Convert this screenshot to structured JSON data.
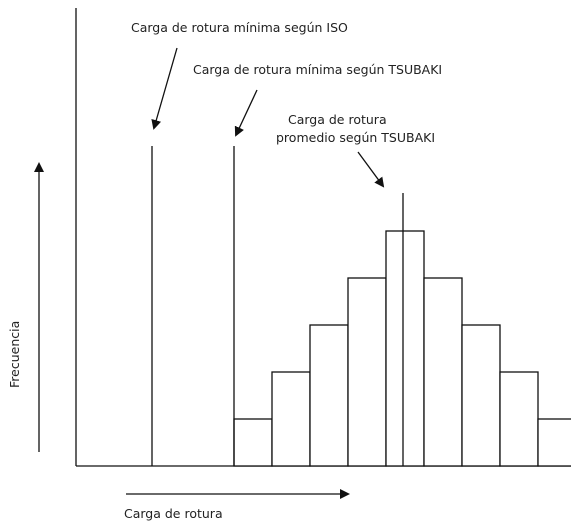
{
  "diagram": {
    "annotations": {
      "iso_min": "Carga de rotura mínima según ISO",
      "tsubaki_min": "Carga de rotura mínima según TSUBAKI",
      "tsubaki_avg_line1": "Carga de rotura",
      "tsubaki_avg_line2": "promedio según TSUBAKI"
    },
    "axes": {
      "y_label": "Frecuencia",
      "x_label": "Carga de rotura"
    },
    "bars": [
      1,
      2,
      3,
      4,
      5,
      4,
      3,
      2,
      1
    ],
    "colors": {
      "ink": "#111111",
      "background": "#ffffff"
    }
  }
}
